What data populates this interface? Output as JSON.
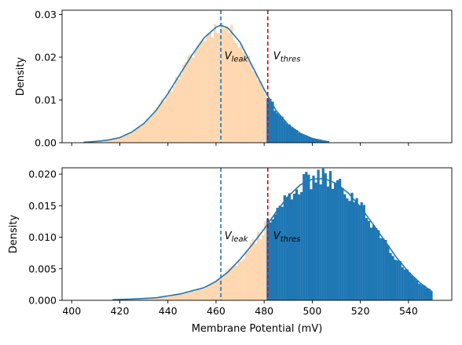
{
  "chart_data": [
    {
      "type": "histogram",
      "xlim": [
        396,
        558
      ],
      "ylim": [
        0,
        0.031
      ],
      "ylabel": "Density",
      "xlabel": "",
      "yticks": [
        0,
        0.01,
        0.02,
        0.03
      ],
      "ytick_labels": [
        "0.00",
        "0.01",
        "0.02",
        "0.03"
      ],
      "xticks": [
        400,
        420,
        440,
        460,
        480,
        500,
        520,
        540
      ],
      "show_xtick_labels": false,
      "threshold": 481.5,
      "colors": {
        "below": "#ffd7b0",
        "above": "#1f77b4",
        "curve": "#1f77b4",
        "leak_line": "#1f77b4",
        "thres_line": "#e00000"
      },
      "histogram": {
        "start": 405,
        "end": 507,
        "bin_width": 1,
        "mean": 462,
        "sd": 14.5,
        "noise": 0.07,
        "seed": 11
      },
      "fit_curve": {
        "x": [
          405,
          410,
          415,
          420,
          425,
          430,
          435,
          440,
          445,
          450,
          455,
          460,
          462,
          465,
          470,
          475,
          480,
          485,
          490,
          495,
          500,
          505,
          507
        ],
        "y": [
          0.0001,
          0.0003,
          0.0006,
          0.0012,
          0.0025,
          0.0045,
          0.0075,
          0.0115,
          0.016,
          0.0205,
          0.0245,
          0.027,
          0.0275,
          0.0268,
          0.0235,
          0.018,
          0.0125,
          0.0075,
          0.0042,
          0.0022,
          0.001,
          0.0004,
          0.0002
        ]
      },
      "vlines": [
        {
          "x": 462,
          "style": "leak"
        },
        {
          "x": 481.5,
          "style": "thres"
        }
      ],
      "annotations": [
        {
          "base": "V",
          "sub": "leak",
          "x": 463.5,
          "y": 0.0195
        },
        {
          "base": "V",
          "sub": "thres",
          "x": 483.8,
          "y": 0.0195
        }
      ]
    },
    {
      "type": "histogram",
      "xlim": [
        396,
        558
      ],
      "ylim": [
        0,
        0.021
      ],
      "ylabel": "Density",
      "xlabel": "Membrane Potential (mV)",
      "yticks": [
        0,
        0.005,
        0.01,
        0.015,
        0.02
      ],
      "ytick_labels": [
        "0.000",
        "0.005",
        "0.010",
        "0.015",
        "0.020"
      ],
      "xticks": [
        400,
        420,
        440,
        460,
        480,
        500,
        520,
        540
      ],
      "xtick_labels": [
        "400",
        "420",
        "440",
        "460",
        "480",
        "500",
        "520",
        "540"
      ],
      "show_xtick_labels": true,
      "threshold": 481.5,
      "colors": {
        "below": "#ffd7b0",
        "above": "#1f77b4",
        "curve": "#1f77b4",
        "leak_line": "#1f77b4",
        "thres_line": "#e00000"
      },
      "histogram": {
        "start": 417,
        "end": 550,
        "bin_width": 1,
        "mean": 504,
        "sd": 17,
        "noise": 0.09,
        "seed": 29
      },
      "fit_curve": {
        "x": [
          417,
          425,
          435,
          445,
          455,
          460,
          465,
          470,
          475,
          480,
          485,
          490,
          495,
          500,
          505,
          510,
          515,
          520,
          525,
          530,
          535,
          540,
          545,
          550
        ],
        "y": [
          0.0001,
          0.0002,
          0.0004,
          0.001,
          0.002,
          0.003,
          0.0045,
          0.0065,
          0.0088,
          0.0113,
          0.014,
          0.0165,
          0.0183,
          0.0192,
          0.0193,
          0.0185,
          0.017,
          0.0148,
          0.0122,
          0.0095,
          0.0068,
          0.0045,
          0.0027,
          0.0013
        ]
      },
      "vlines": [
        {
          "x": 462,
          "style": "leak"
        },
        {
          "x": 481.5,
          "style": "thres"
        }
      ],
      "annotations": [
        {
          "base": "V",
          "sub": "leak",
          "x": 463.5,
          "y": 0.0097
        },
        {
          "base": "V",
          "sub": "thres",
          "x": 483.8,
          "y": 0.0097
        }
      ]
    }
  ]
}
